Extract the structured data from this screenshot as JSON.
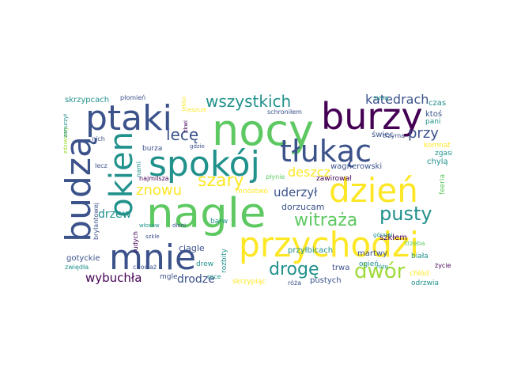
{
  "word_cloud": {
    "colors": {
      "dark_purple": "#440154",
      "indigo": "#3b528b",
      "teal": "#21918c",
      "green": "#5ec962",
      "yellow": "#fde725",
      "light_green": "#a0da39"
    },
    "words": [
      {
        "text": "nagle",
        "color": "#5ec962"
      },
      {
        "text": "przychodzi",
        "color": "#fde725"
      },
      {
        "text": "nocy",
        "color": "#5ec962"
      },
      {
        "text": "burzy",
        "color": "#440154"
      },
      {
        "text": "ptaki",
        "color": "#3b528b"
      },
      {
        "text": "spokój",
        "color": "#21918c"
      },
      {
        "text": "tłukąc",
        "color": "#3b528b"
      },
      {
        "text": "dzień",
        "color": "#fde725"
      },
      {
        "text": "mnie",
        "color": "#3b528b"
      },
      {
        "text": "budzą",
        "color": "#3b528b"
      },
      {
        "text": "okien",
        "color": "#21918c"
      },
      {
        "text": "wszystkich",
        "color": "#21918c"
      },
      {
        "text": "pusty",
        "color": "#21918c"
      },
      {
        "text": "dwór",
        "color": "#a0da39"
      },
      {
        "text": "drogę",
        "color": "#21918c"
      },
      {
        "text": "witraża",
        "color": "#5ec962"
      },
      {
        "text": "szary",
        "color": "#fde725"
      },
      {
        "text": "lecę",
        "color": "#3b528b"
      },
      {
        "text": "znowu",
        "color": "#fde725"
      },
      {
        "text": "katedrach",
        "color": "#3b528b"
      },
      {
        "text": "uderzył",
        "color": "#3b528b"
      },
      {
        "text": "deszcz",
        "color": "#fde725"
      },
      {
        "text": "drzew",
        "color": "#21918c"
      },
      {
        "text": "przy",
        "color": "#3b528b"
      },
      {
        "text": "wybuchła",
        "color": "#440154"
      },
      {
        "text": "drodze",
        "color": "#3b528b"
      },
      {
        "text": "ciągle",
        "color": "#3b528b"
      },
      {
        "text": "dorzucam",
        "color": "#3b528b"
      },
      {
        "text": "przyłbicach",
        "color": "#21918c"
      },
      {
        "text": "martwy",
        "color": "#3b528b"
      },
      {
        "text": "gotyckie",
        "color": "#3b528b"
      },
      {
        "text": "zwiędła",
        "color": "#21918c"
      },
      {
        "text": "mgle",
        "color": "#3b528b"
      },
      {
        "text": "drew",
        "color": "#21918c"
      },
      {
        "text": "barw",
        "color": "#21918c"
      },
      {
        "text": "mnóstwo",
        "color": "#fde725"
      },
      {
        "text": "zawirował",
        "color": "#440154"
      },
      {
        "text": "wagnerowski",
        "color": "#3b528b"
      },
      {
        "text": "ogień",
        "color": "#21918c"
      },
      {
        "text": "szkłem",
        "color": "#440154"
      },
      {
        "text": "chylą",
        "color": "#21918c"
      },
      {
        "text": "zgasi",
        "color": "#21918c"
      },
      {
        "text": "komnat",
        "color": "#fde725"
      },
      {
        "text": "świec",
        "color": "#3b528b"
      },
      {
        "text": "ktoś",
        "color": "#3b528b"
      },
      {
        "text": "pani",
        "color": "#21918c"
      },
      {
        "text": "czas",
        "color": "#21918c"
      },
      {
        "text": "feeria",
        "color": "#5ec962"
      },
      {
        "text": "biała",
        "color": "#21918c"
      },
      {
        "text": "trzeba",
        "color": "#5ec962"
      },
      {
        "text": "chłód",
        "color": "#fde725"
      },
      {
        "text": "odrzwia",
        "color": "#21918c"
      },
      {
        "text": "życie",
        "color": "#440154"
      },
      {
        "text": "pustych",
        "color": "#3b528b"
      },
      {
        "text": "trwa",
        "color": "#3b528b"
      },
      {
        "text": "róża",
        "color": "#3b528b"
      },
      {
        "text": "skrzypiąc",
        "color": "#fde725"
      },
      {
        "text": "rozbity",
        "color": "#21918c"
      },
      {
        "text": "ręce",
        "color": "#21918c"
      },
      {
        "text": "skrzypcach",
        "color": "#21918c"
      },
      {
        "text": "płomień",
        "color": "#3b528b"
      },
      {
        "text": "lekko",
        "color": "#fde725"
      },
      {
        "text": "jeszcze",
        "color": "#fde725"
      },
      {
        "text": "schroniłem",
        "color": "#3b528b"
      },
      {
        "text": "suną",
        "color": "#21918c"
      },
      {
        "text": "trzyma",
        "color": "#3b528b"
      },
      {
        "text": "płynie",
        "color": "#5ec962"
      },
      {
        "text": "górami",
        "color": "#21918c"
      },
      {
        "text": "różę",
        "color": "#21918c"
      },
      {
        "text": "zdziwiony",
        "color": "#a0da39"
      },
      {
        "text": "zanurzył",
        "color": "#21918c"
      },
      {
        "text": "nich",
        "color": "#3b528b"
      },
      {
        "text": "lecz",
        "color": "#3b528b"
      },
      {
        "text": "brylantowej",
        "color": "#3b528b"
      },
      {
        "text": "włosów",
        "color": "#21918c"
      },
      {
        "text": "chociaż",
        "color": "#3b528b"
      },
      {
        "text": "szkle",
        "color": "#3b528b"
      },
      {
        "text": "rudych",
        "color": "#440154"
      },
      {
        "text": "dłoni",
        "color": "#3b528b"
      },
      {
        "text": "najmilsza",
        "color": "#440154"
      },
      {
        "text": "nami",
        "color": "#21918c"
      },
      {
        "text": "burza",
        "color": "#3b528b"
      },
      {
        "text": "gdzie",
        "color": "#3b528b"
      },
      {
        "text": "tkwi",
        "color": "#440154"
      }
    ]
  }
}
